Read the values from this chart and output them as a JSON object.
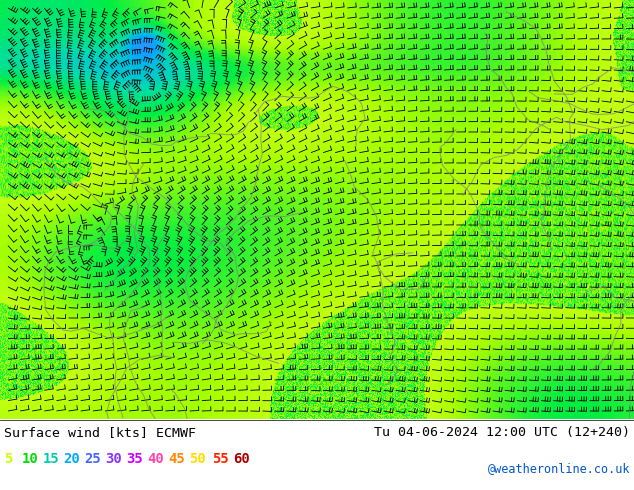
{
  "title_left": "Surface wind [kts] ECMWF",
  "title_right": "Tu 04-06-2024 12:00 UTC (12+240)",
  "credit": "@weatheronline.co.uk",
  "legend_values": [
    "5",
    "10",
    "15",
    "20",
    "25",
    "30",
    "35",
    "40",
    "45",
    "50",
    "55",
    "60"
  ],
  "legend_colors": [
    "#c8ff00",
    "#00dd00",
    "#00ccaa",
    "#00aaff",
    "#4466ff",
    "#8833ff",
    "#cc00ff",
    "#ff44aa",
    "#ff8800",
    "#ffdd00",
    "#ff2200",
    "#aa0000"
  ],
  "bg_color": "#ffffff",
  "figsize": [
    6.34,
    4.9
  ],
  "dpi": 100,
  "wind_colormap": [
    [
      0.0,
      "#ffff44"
    ],
    [
      0.083,
      "#aaff00"
    ],
    [
      0.167,
      "#00ee44"
    ],
    [
      0.25,
      "#00ddaa"
    ],
    [
      0.333,
      "#00aaff"
    ],
    [
      0.417,
      "#4488ff"
    ],
    [
      0.5,
      "#8844ff"
    ],
    [
      0.583,
      "#cc00ff"
    ],
    [
      0.667,
      "#ff44aa"
    ],
    [
      0.75,
      "#ff8800"
    ],
    [
      0.833,
      "#ffdd00"
    ],
    [
      1.0,
      "#ff2200"
    ]
  ]
}
